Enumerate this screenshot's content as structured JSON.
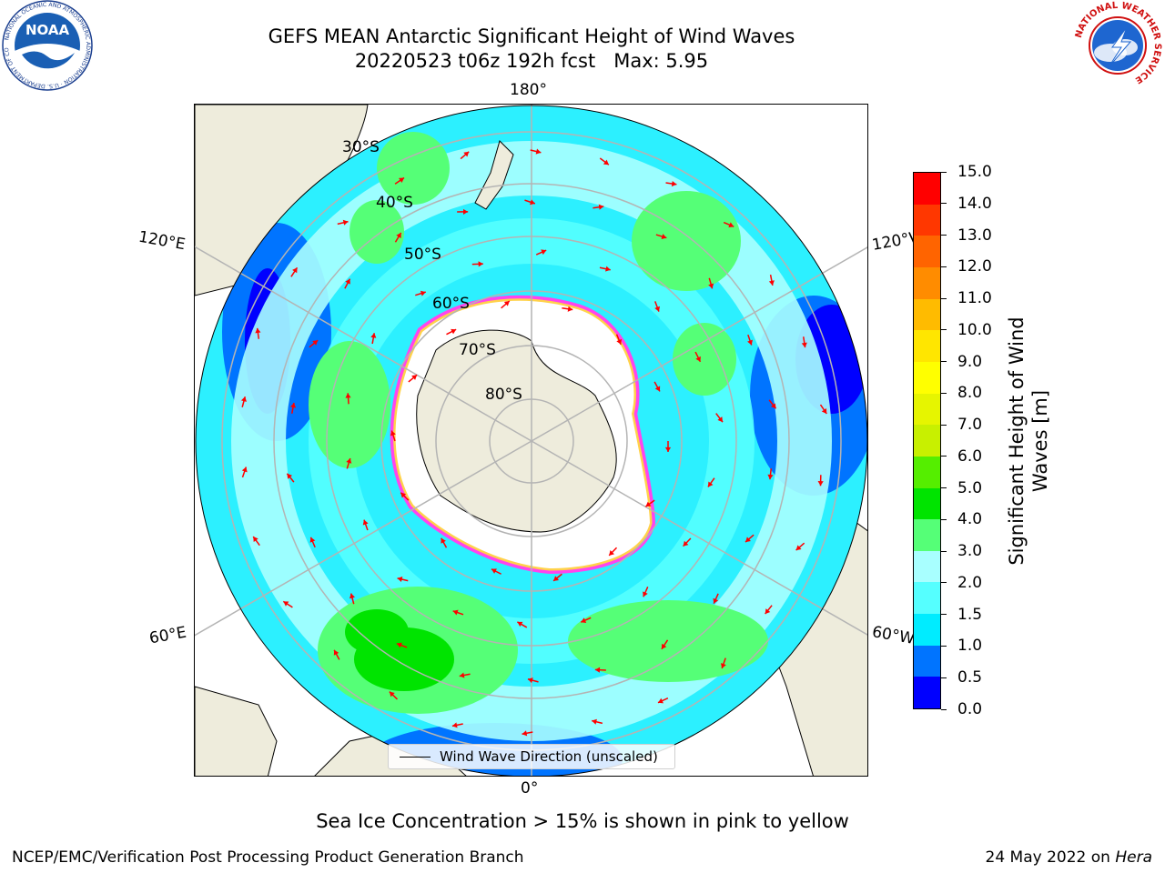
{
  "title": {
    "line1": "GEFS MEAN Antarctic Significant Height of Wind Waves",
    "line2": "20220523 t06z 192h fcst   Max: 5.95"
  },
  "map": {
    "meridian_labels": {
      "top": "180°",
      "bottom": "0°",
      "upper_left": "120°E",
      "upper_right": "120°W",
      "lower_left": "60°E",
      "lower_right": "60°W"
    },
    "parallel_labels": [
      "30°S",
      "40°S",
      "50°S",
      "60°S",
      "70°S",
      "80°S"
    ],
    "legend_label": "Wind Wave Direction (unscaled)",
    "colors": {
      "land": "#eeecdc",
      "ice_edge_pink": "#ff44ee",
      "ice_edge_yellow": "#ffd24a",
      "arrow": "#ff0000",
      "grid": "#b4b4b4"
    }
  },
  "colorbar": {
    "label": "Significant Height of Wind\nWaves [m]",
    "ticks": [
      "0.0",
      "0.5",
      "1.0",
      "1.5",
      "2.0",
      "3.0",
      "4.0",
      "5.0",
      "6.0",
      "7.0",
      "8.0",
      "9.0",
      "10.0",
      "11.0",
      "12.0",
      "13.0",
      "14.0",
      "15.0"
    ],
    "colors": [
      "#0000ff",
      "#0074ff",
      "#00ecff",
      "#55ffff",
      "#a8ffff",
      "#55ff77",
      "#00e400",
      "#55ee00",
      "#c8f000",
      "#e6f500",
      "#ffff00",
      "#ffe600",
      "#ffbb00",
      "#ff8c00",
      "#ff6400",
      "#ff3700",
      "#ff0000"
    ]
  },
  "ice_note": "Sea Ice Concentration > 15% is shown in pink to yellow",
  "footer": {
    "left": "NCEP/EMC/Verification Post Processing Product Generation Branch",
    "date": "24 May 2022 on ",
    "host": "Hera"
  },
  "logos": {
    "noaa": "NOAA",
    "noaa_ring": "NATIONAL OCEANIC AND ATMOSPHERIC ADMINISTRATION · U.S. DEPARTMENT OF COMMERCE",
    "nws_ring": "NATIONAL WEATHER SERVICE"
  }
}
